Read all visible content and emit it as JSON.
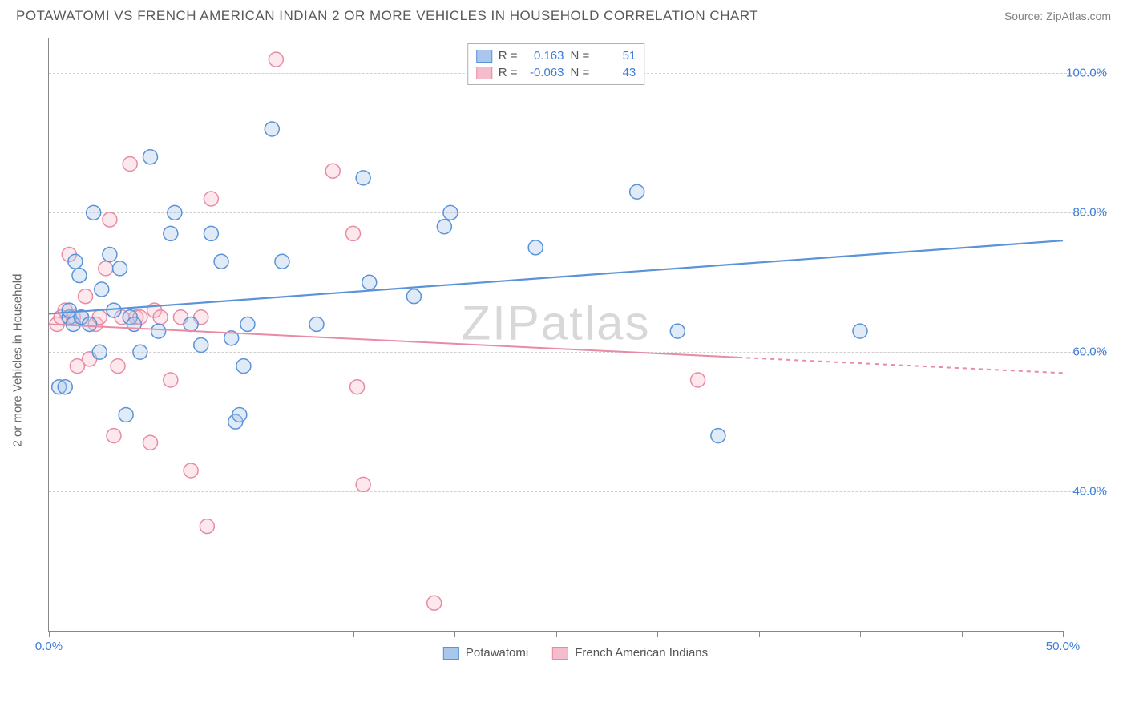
{
  "header": {
    "title": "POTAWATOMI VS FRENCH AMERICAN INDIAN 2 OR MORE VEHICLES IN HOUSEHOLD CORRELATION CHART",
    "source": "Source: ZipAtlas.com"
  },
  "chart": {
    "type": "scatter",
    "y_axis_label": "2 or more Vehicles in Household",
    "watermark": "ZIPatlas",
    "background_color": "#ffffff",
    "grid_color": "#d0d0d0",
    "axis_color": "#888888",
    "xlim": [
      0,
      50
    ],
    "ylim": [
      20,
      105
    ],
    "x_ticks": [
      0,
      5,
      10,
      15,
      20,
      25,
      30,
      35,
      40,
      45,
      50
    ],
    "x_tick_labels": {
      "0": "0.0%",
      "50": "50.0%"
    },
    "y_gridlines": [
      40,
      60,
      80,
      100
    ],
    "y_tick_labels": {
      "40": "40.0%",
      "60": "60.0%",
      "80": "80.0%",
      "100": "100.0%"
    },
    "marker_radius": 9,
    "marker_stroke_width": 1.5,
    "marker_fill_opacity": 0.35,
    "series": [
      {
        "name": "Potawatomi",
        "color": "#5b93d8",
        "fill": "#a9c7ec",
        "R": "0.163",
        "N": "51",
        "trend": {
          "x1": 0,
          "y1": 65.5,
          "x2": 50,
          "y2": 76.0,
          "stroke_width": 2.2,
          "dash_from_x": null
        },
        "points": [
          [
            0.5,
            55
          ],
          [
            0.8,
            55
          ],
          [
            1.0,
            65
          ],
          [
            1.0,
            66
          ],
          [
            1.2,
            64
          ],
          [
            1.3,
            73
          ],
          [
            1.5,
            71
          ],
          [
            1.6,
            65
          ],
          [
            2.0,
            64
          ],
          [
            2.2,
            80
          ],
          [
            2.5,
            60
          ],
          [
            2.6,
            69
          ],
          [
            3.0,
            74
          ],
          [
            3.2,
            66
          ],
          [
            3.5,
            72
          ],
          [
            3.8,
            51
          ],
          [
            4.0,
            65
          ],
          [
            4.2,
            64
          ],
          [
            4.5,
            60
          ],
          [
            5.0,
            88
          ],
          [
            5.4,
            63
          ],
          [
            6.0,
            77
          ],
          [
            6.2,
            80
          ],
          [
            7.0,
            64
          ],
          [
            7.5,
            61
          ],
          [
            8.0,
            77
          ],
          [
            8.5,
            73
          ],
          [
            9.0,
            62
          ],
          [
            9.2,
            50
          ],
          [
            9.4,
            51
          ],
          [
            9.6,
            58
          ],
          [
            9.8,
            64
          ],
          [
            11.0,
            92
          ],
          [
            11.5,
            73
          ],
          [
            13.2,
            64
          ],
          [
            15.5,
            85
          ],
          [
            15.8,
            70
          ],
          [
            18.0,
            68
          ],
          [
            19.5,
            78
          ],
          [
            19.8,
            80
          ],
          [
            24.0,
            75
          ],
          [
            29.0,
            83
          ],
          [
            31.0,
            63
          ],
          [
            33.0,
            48
          ],
          [
            40.0,
            63
          ]
        ]
      },
      {
        "name": "French American Indians",
        "color": "#e88ba3",
        "fill": "#f5bdcb",
        "R": "-0.063",
        "N": "43",
        "trend": {
          "x1": 0,
          "y1": 64.0,
          "x2": 50,
          "y2": 57.0,
          "stroke_width": 2.0,
          "dash_from_x": 34
        },
        "points": [
          [
            0.4,
            64
          ],
          [
            0.6,
            65
          ],
          [
            0.8,
            66
          ],
          [
            1.0,
            74
          ],
          [
            1.2,
            65
          ],
          [
            1.4,
            58
          ],
          [
            1.6,
            65
          ],
          [
            1.8,
            68
          ],
          [
            2.0,
            59
          ],
          [
            2.3,
            64
          ],
          [
            2.5,
            65
          ],
          [
            2.8,
            72
          ],
          [
            3.0,
            79
          ],
          [
            3.2,
            48
          ],
          [
            3.4,
            58
          ],
          [
            3.6,
            65
          ],
          [
            4.0,
            87
          ],
          [
            4.3,
            65
          ],
          [
            4.5,
            65
          ],
          [
            5.0,
            47
          ],
          [
            5.2,
            66
          ],
          [
            5.5,
            65
          ],
          [
            6.0,
            56
          ],
          [
            6.5,
            65
          ],
          [
            7.0,
            43
          ],
          [
            7.5,
            65
          ],
          [
            7.8,
            35
          ],
          [
            8.0,
            82
          ],
          [
            11.2,
            102
          ],
          [
            14.0,
            86
          ],
          [
            15.0,
            77
          ],
          [
            15.2,
            55
          ],
          [
            15.5,
            41
          ],
          [
            19.0,
            24
          ],
          [
            32.0,
            56
          ]
        ]
      }
    ],
    "stats_legend": {
      "r_label": "R =",
      "n_label": "N ="
    },
    "bottom_legend": {
      "items": [
        "Potawatomi",
        "French American Indians"
      ]
    }
  }
}
